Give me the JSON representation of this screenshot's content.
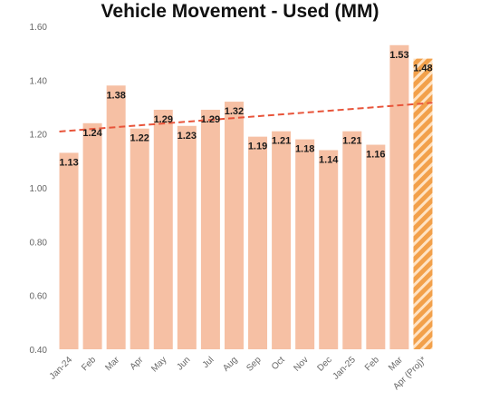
{
  "chart_data": {
    "type": "bar",
    "title": "Vehicle Movement - Used (MM)",
    "xlabel": "",
    "ylabel": "",
    "ylim": [
      0.4,
      1.6
    ],
    "yticks": [
      "0.40",
      "0.60",
      "0.80",
      "1.00",
      "1.20",
      "1.40",
      "1.60"
    ],
    "categories": [
      "Jan-24",
      "Feb",
      "Mar",
      "Apr",
      "May",
      "Jun",
      "Jul",
      "Aug",
      "Sep",
      "Oct",
      "Nov",
      "Dec",
      "Jan-25",
      "Feb",
      "Mar",
      "Apr (Proj)*"
    ],
    "values": [
      1.13,
      1.24,
      1.38,
      1.22,
      1.29,
      1.23,
      1.29,
      1.32,
      1.19,
      1.21,
      1.18,
      1.14,
      1.21,
      1.16,
      1.53,
      1.48
    ],
    "value_labels": [
      "1.13",
      "1.24",
      "1.38",
      "1.22",
      "1.29",
      "1.23",
      "1.29",
      "1.32",
      "1.19",
      "1.21",
      "1.18",
      "1.14",
      "1.21",
      "1.16",
      "1.53",
      "1.48"
    ],
    "projected_index": 15,
    "trendline": {
      "style": "dashed",
      "color": "#e8543a"
    },
    "grid": false,
    "colors": {
      "bar": "#f6c0a4",
      "projected": "#f2a04a",
      "projected_stripe": "#ffe3c4",
      "axis_text": "#666666"
    }
  }
}
